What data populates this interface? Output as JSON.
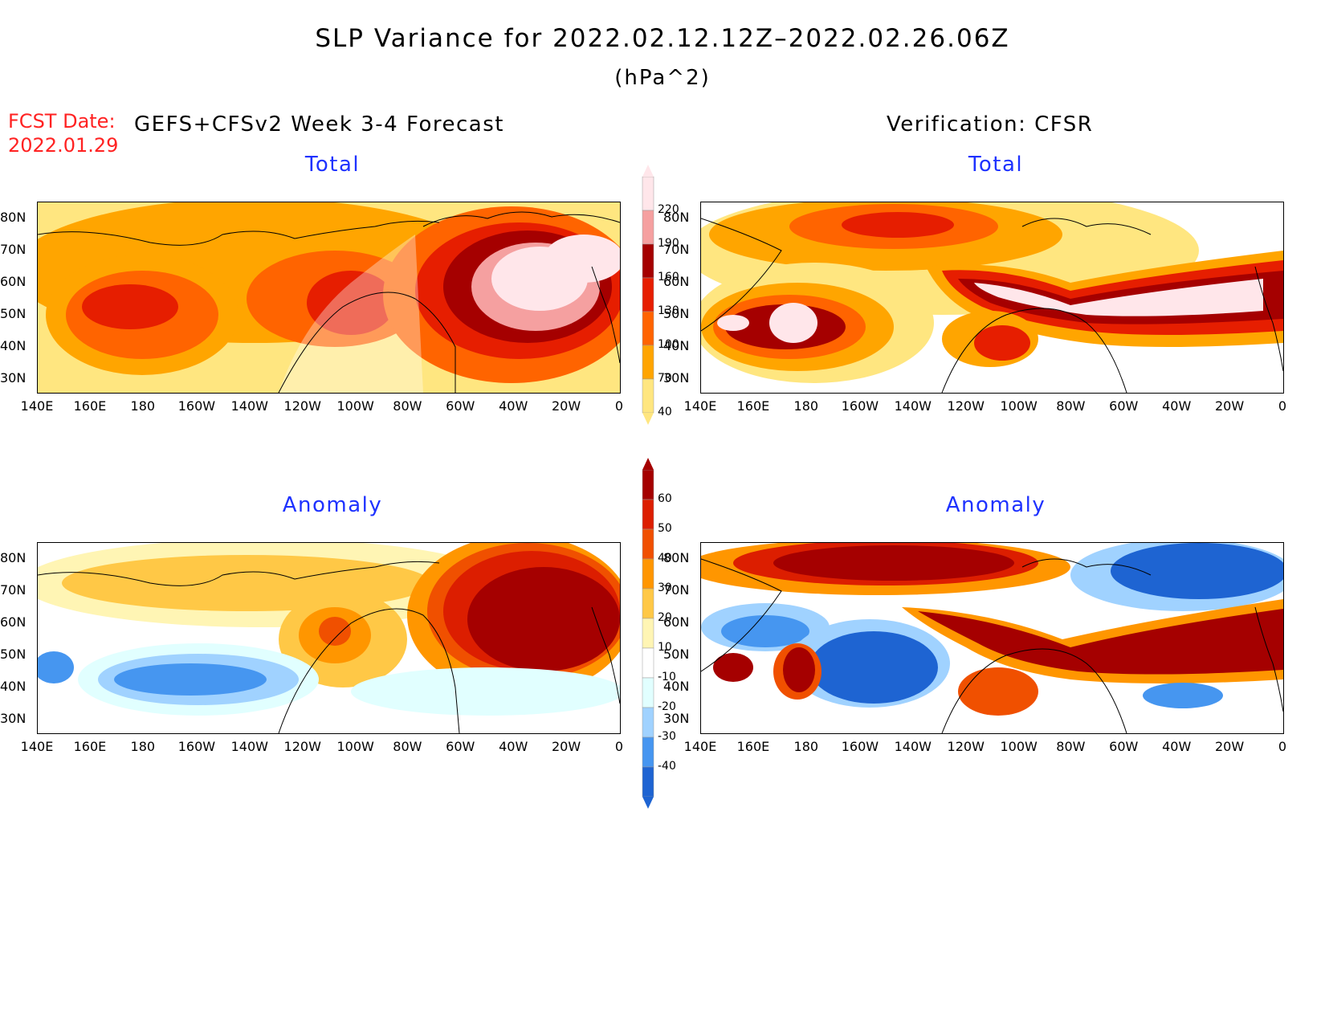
{
  "header": {
    "title": "SLP Variance for 2022.02.12.12Z–2022.02.26.06Z",
    "units": "(hPa^2)",
    "fcst_label_line1": "FCST Date:",
    "fcst_label_line2": "2022.01.29",
    "left_heading": "GEFS+CFSv2 Week 3-4 Forecast",
    "right_heading": "Verification: CFSR"
  },
  "panels": {
    "forecast_total_title": "Total",
    "verification_total_title": "Total",
    "forecast_anomaly_title": "Anomaly",
    "verification_anomaly_title": "Anomaly"
  },
  "axes": {
    "lon_labels": [
      "140E",
      "160E",
      "180",
      "160W",
      "140W",
      "120W",
      "100W",
      "80W",
      "60W",
      "40W",
      "20W",
      "0"
    ],
    "lat_labels": [
      "80N",
      "70N",
      "60N",
      "50N",
      "40N",
      "30N"
    ]
  },
  "colorbars": {
    "total": {
      "levels": [
        "40",
        "70",
        "100",
        "130",
        "160",
        "190",
        "220"
      ],
      "colors": [
        "#ffe680",
        "#ffa500",
        "#ff6400",
        "#e61e00",
        "#a50000",
        "#f5a0a0",
        "#ffe6ea"
      ]
    },
    "anomaly": {
      "levels": [
        "60",
        "50",
        "40",
        "30",
        "20",
        "10",
        "-10",
        "-20",
        "-30",
        "-40"
      ],
      "colors": [
        "#a50000",
        "#dc1e00",
        "#f05000",
        "#ff9600",
        "#ffc846",
        "#fff5b4",
        "#ffffff",
        "#e1ffff",
        "#a0d2ff",
        "#4696f0",
        "#1e64d2"
      ]
    }
  },
  "colors": {
    "title_blue": "#1e32ff",
    "fcst_red": "#ff2222"
  }
}
